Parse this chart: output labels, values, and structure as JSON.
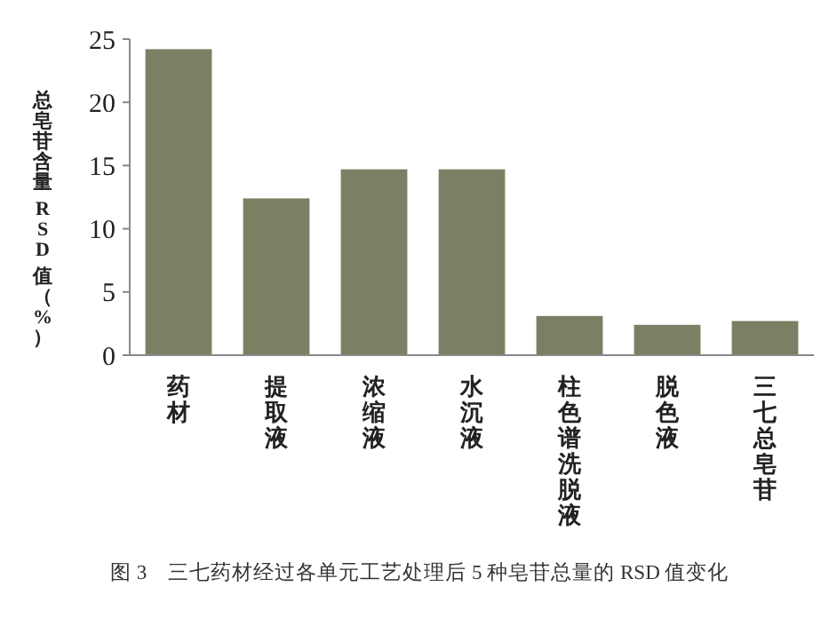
{
  "chart_data": {
    "type": "bar",
    "ylabel": "总皂苷含量 RSD 值（%）",
    "categories": [
      "药材",
      "提取液",
      "浓缩液",
      "水沉液",
      "柱色谱洗脱液",
      "脱色液",
      "三七总皂苷"
    ],
    "values": [
      24.2,
      12.4,
      14.7,
      14.7,
      3.1,
      2.4,
      2.7
    ],
    "color": "#7a8063",
    "ylim": [
      0,
      25
    ],
    "yticks": [
      0,
      5,
      10,
      15,
      20,
      25
    ],
    "annotations": [
      "图 3　三七药材经过各单元工艺处理后 5 种皂苷总量的 RSD 值变化"
    ]
  }
}
